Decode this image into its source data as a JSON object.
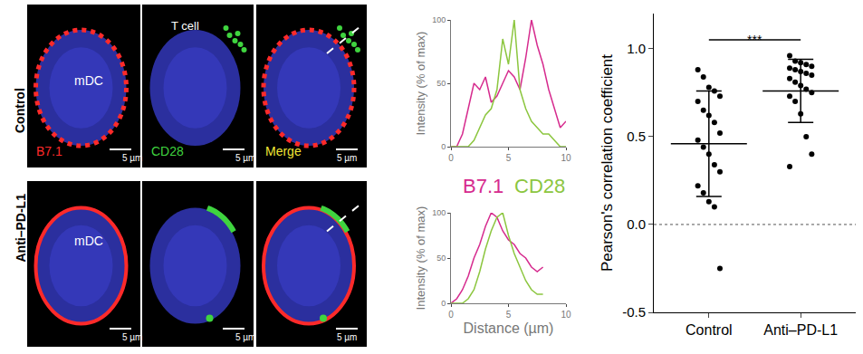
{
  "micrographs": {
    "row_labels": [
      "Control",
      "Anti–PD-L1"
    ],
    "cell_label": "mDC",
    "t_cell_label": "T cell",
    "channels": [
      {
        "name": "B7.1",
        "color": "#ff2a2a"
      },
      {
        "name": "CD28",
        "color": "#3fd43f"
      },
      {
        "name": "Merge",
        "color": "#f2e635"
      }
    ],
    "scale_bar": "5 µm"
  },
  "chart_data": [
    {
      "type": "line",
      "x": [
        0,
        0.5,
        1,
        1.5,
        2,
        2.5,
        3,
        3.5,
        4,
        4.5,
        5,
        5.5,
        6,
        6.5,
        7,
        7.5,
        8,
        8.5,
        9,
        9.5,
        10
      ],
      "series": [
        {
          "name": "B7.1",
          "color": "#d62b8e",
          "values": [
            0,
            0,
            10,
            30,
            50,
            45,
            55,
            35,
            40,
            50,
            60,
            55,
            45,
            70,
            100,
            80,
            65,
            45,
            30,
            15,
            20
          ]
        },
        {
          "name": "CD28",
          "color": "#8cc63f",
          "values": [
            0,
            0,
            0,
            0,
            5,
            15,
            25,
            30,
            45,
            85,
            65,
            100,
            45,
            30,
            20,
            15,
            10,
            10,
            5,
            0,
            0
          ]
        }
      ],
      "xlim": [
        0,
        10
      ],
      "xticks": [
        0,
        5,
        10
      ],
      "ylim": [
        0,
        100
      ],
      "yticks": [
        0,
        50,
        100
      ],
      "y_label": "Intensity (% of max)"
    },
    {
      "type": "line",
      "x": [
        0,
        0.5,
        1,
        1.5,
        2,
        2.5,
        3,
        3.5,
        4,
        4.5,
        5,
        5.5,
        6,
        6.5,
        7,
        7.5,
        8
      ],
      "series": [
        {
          "name": "B7.1",
          "color": "#d62b8e",
          "values": [
            0,
            5,
            15,
            30,
            50,
            65,
            85,
            100,
            95,
            80,
            70,
            65,
            55,
            50,
            40,
            35,
            40
          ]
        },
        {
          "name": "CD28",
          "color": "#8cc63f",
          "values": [
            0,
            0,
            0,
            5,
            15,
            35,
            60,
            80,
            95,
            100,
            75,
            55,
            40,
            25,
            15,
            10,
            10
          ]
        }
      ],
      "xlim": [
        0,
        10
      ],
      "xticks": [
        0,
        5,
        10
      ],
      "ylim": [
        0,
        100
      ],
      "yticks": [
        0,
        50,
        100
      ],
      "y_label": "Intensity (% of max)",
      "x_label": "Distance (µm)"
    },
    {
      "type": "scatter",
      "categories": [
        "Control",
        "Anti–PD-L1"
      ],
      "points": [
        [
          0.88,
          0.84,
          0.78,
          0.76,
          0.73,
          0.7,
          0.65,
          0.62,
          0.58,
          0.52,
          0.48,
          0.44,
          0.4,
          0.34,
          0.3,
          0.22,
          0.18,
          0.13,
          0.1,
          -0.25
        ],
        [
          0.96,
          0.93,
          0.92,
          0.91,
          0.9,
          0.89,
          0.88,
          0.87,
          0.86,
          0.85,
          0.83,
          0.81,
          0.79,
          0.77,
          0.75,
          0.73,
          0.7,
          0.63,
          0.5,
          0.4,
          0.33
        ]
      ],
      "mean": [
        0.46,
        0.76
      ],
      "sd": [
        0.3,
        0.18
      ],
      "color": "#000000",
      "ylim": [
        -0.5,
        1.2
      ],
      "yticks": [
        {
          "value": -0.5,
          "label": "-0.5"
        },
        {
          "value": 0,
          "label": "0.0"
        },
        {
          "value": 0.5,
          "label": "0.5"
        },
        {
          "value": 1,
          "label": "1.0"
        }
      ],
      "y_label": "Pearson's correlation coefficient",
      "reference_line": 0,
      "significance": {
        "label": "***",
        "between": [
          "Control",
          "Anti–PD-L1"
        ],
        "y": 1.05
      }
    }
  ]
}
